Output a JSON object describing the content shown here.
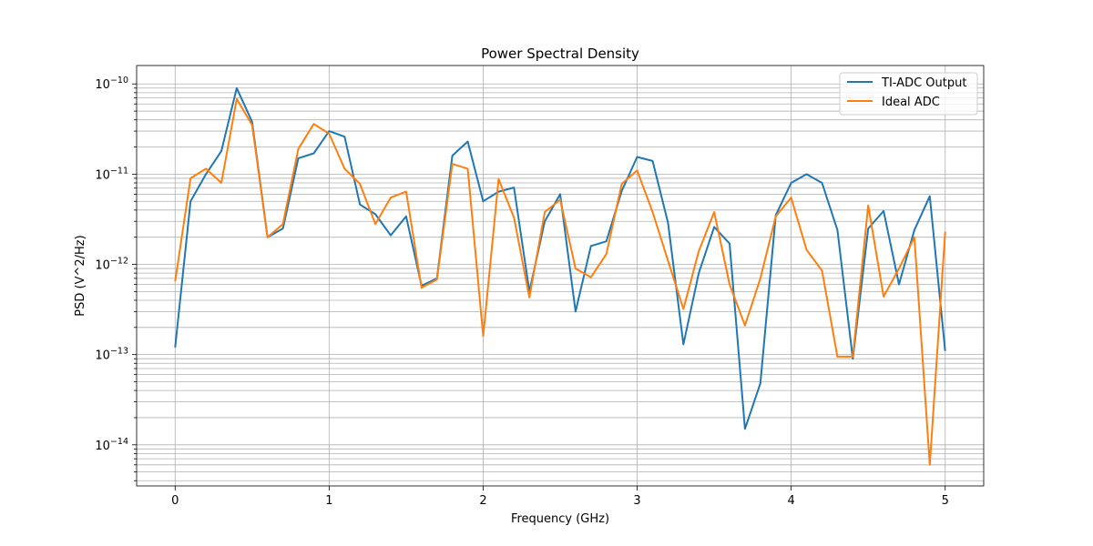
{
  "chart_data": {
    "type": "line",
    "title": "Power Spectral Density",
    "xlabel": "Frequency (GHz)",
    "ylabel": "PSD (V^2/Hz)",
    "yscale": "log",
    "xlim": [
      -0.25,
      5.25
    ],
    "ylim": [
      3.5e-15,
      1.6e-10
    ],
    "grid": "both",
    "legend_position": "top-right",
    "x_ticks": [
      0,
      1,
      2,
      3,
      4,
      5
    ],
    "y_ticks": [
      1e-14,
      1e-13,
      1e-12,
      1e-11,
      1e-10
    ],
    "y_tick_labels": [
      {
        "base": "10",
        "exp": "−14"
      },
      {
        "base": "10",
        "exp": "−13"
      },
      {
        "base": "10",
        "exp": "−12"
      },
      {
        "base": "10",
        "exp": "−11"
      },
      {
        "base": "10",
        "exp": "−10"
      }
    ],
    "x": [
      0,
      0.1,
      0.2,
      0.3,
      0.4,
      0.5,
      0.6,
      0.7,
      0.8,
      0.9,
      1.0,
      1.1,
      1.2,
      1.3,
      1.4,
      1.5,
      1.6,
      1.7,
      1.8,
      1.9,
      2.0,
      2.1,
      2.2,
      2.3,
      2.4,
      2.5,
      2.6,
      2.7,
      2.8,
      2.9,
      3.0,
      3.1,
      3.2,
      3.3,
      3.4,
      3.5,
      3.6,
      3.7,
      3.8,
      3.9,
      4.0,
      4.1,
      4.2,
      4.3,
      4.4,
      4.5,
      4.6,
      4.7,
      4.8,
      4.9,
      5.0
    ],
    "series": [
      {
        "name": "TI-ADC Output",
        "color": "#1f77b4",
        "values": [
          1.2e-13,
          5e-12,
          1e-11,
          1.8e-11,
          9e-11,
          3.8e-11,
          2e-12,
          2.5e-12,
          1.5e-11,
          1.7e-11,
          3e-11,
          2.6e-11,
          4.6e-12,
          3.6e-12,
          2.1e-12,
          3.4e-12,
          5.8e-13,
          7e-13,
          1.6e-11,
          2.3e-11,
          5e-12,
          6.4e-12,
          7.1e-12,
          5e-13,
          3e-12,
          6e-12,
          3e-13,
          1.6e-12,
          1.8e-12,
          6.5e-12,
          1.55e-11,
          1.4e-11,
          2.9e-12,
          1.3e-13,
          8e-13,
          2.6e-12,
          1.7e-12,
          1.5e-14,
          4.8e-14,
          3.5e-12,
          8e-12,
          1e-11,
          8e-12,
          2.4e-12,
          9e-14,
          2.5e-12,
          3.9e-12,
          6e-13,
          2.4e-12,
          5.7e-12,
          1.1e-13
        ]
      },
      {
        "name": "Ideal ADC",
        "color": "#ff7f0e",
        "values": [
          6.5e-13,
          9e-12,
          1.15e-11,
          8e-12,
          6.8e-11,
          3.5e-11,
          2e-12,
          2.8e-12,
          1.9e-11,
          3.6e-11,
          2.8e-11,
          1.15e-11,
          7.8e-12,
          2.8e-12,
          5.5e-12,
          6.4e-12,
          5.5e-13,
          6.8e-13,
          1.3e-11,
          1.15e-11,
          1.6e-13,
          8.8e-12,
          3.3e-12,
          4.3e-13,
          3.8e-12,
          5.2e-12,
          9e-13,
          7.2e-13,
          1.3e-12,
          7.8e-12,
          1.1e-11,
          3.8e-12,
          1.1e-12,
          3.2e-13,
          1.4e-12,
          3.8e-12,
          6e-13,
          2.1e-13,
          7e-13,
          3.4e-12,
          5.5e-12,
          1.45e-12,
          8.5e-13,
          9.5e-14,
          9.5e-14,
          4.5e-12,
          4.4e-13,
          9e-13,
          2e-12,
          6e-15,
          2.3e-12
        ]
      }
    ]
  }
}
